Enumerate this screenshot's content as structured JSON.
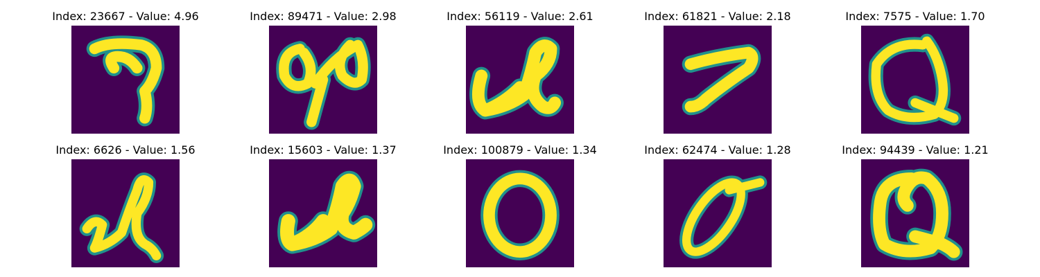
{
  "panels": [
    {
      "title": "Index: 23667 - Value: 4.96",
      "glyph": "seven-curl"
    },
    {
      "title": "Index: 89471 - Value: 2.98",
      "glyph": "loops-pair"
    },
    {
      "title": "Index: 56119 - Value: 2.61",
      "glyph": "cursive-l"
    },
    {
      "title": "Index: 61821 - Value: 2.18",
      "glyph": "seven"
    },
    {
      "title": "Index: 7575 - Value: 1.70",
      "glyph": "q-loop"
    },
    {
      "title": "Index: 6626 - Value: 1.56",
      "glyph": "cursive-l-tall"
    },
    {
      "title": "Index: 15603 - Value: 1.37",
      "glyph": "cursive-l-bold"
    },
    {
      "title": "Index: 100879 - Value: 1.34",
      "glyph": "zero"
    },
    {
      "title": "Index: 62474 - Value: 1.28",
      "glyph": "slanted-zero"
    },
    {
      "title": "Index: 94439 - Value: 1.21",
      "glyph": "q-bold"
    }
  ],
  "colors": {
    "background": "#440154",
    "stroke": "#fde725",
    "edge": "#21918c"
  }
}
